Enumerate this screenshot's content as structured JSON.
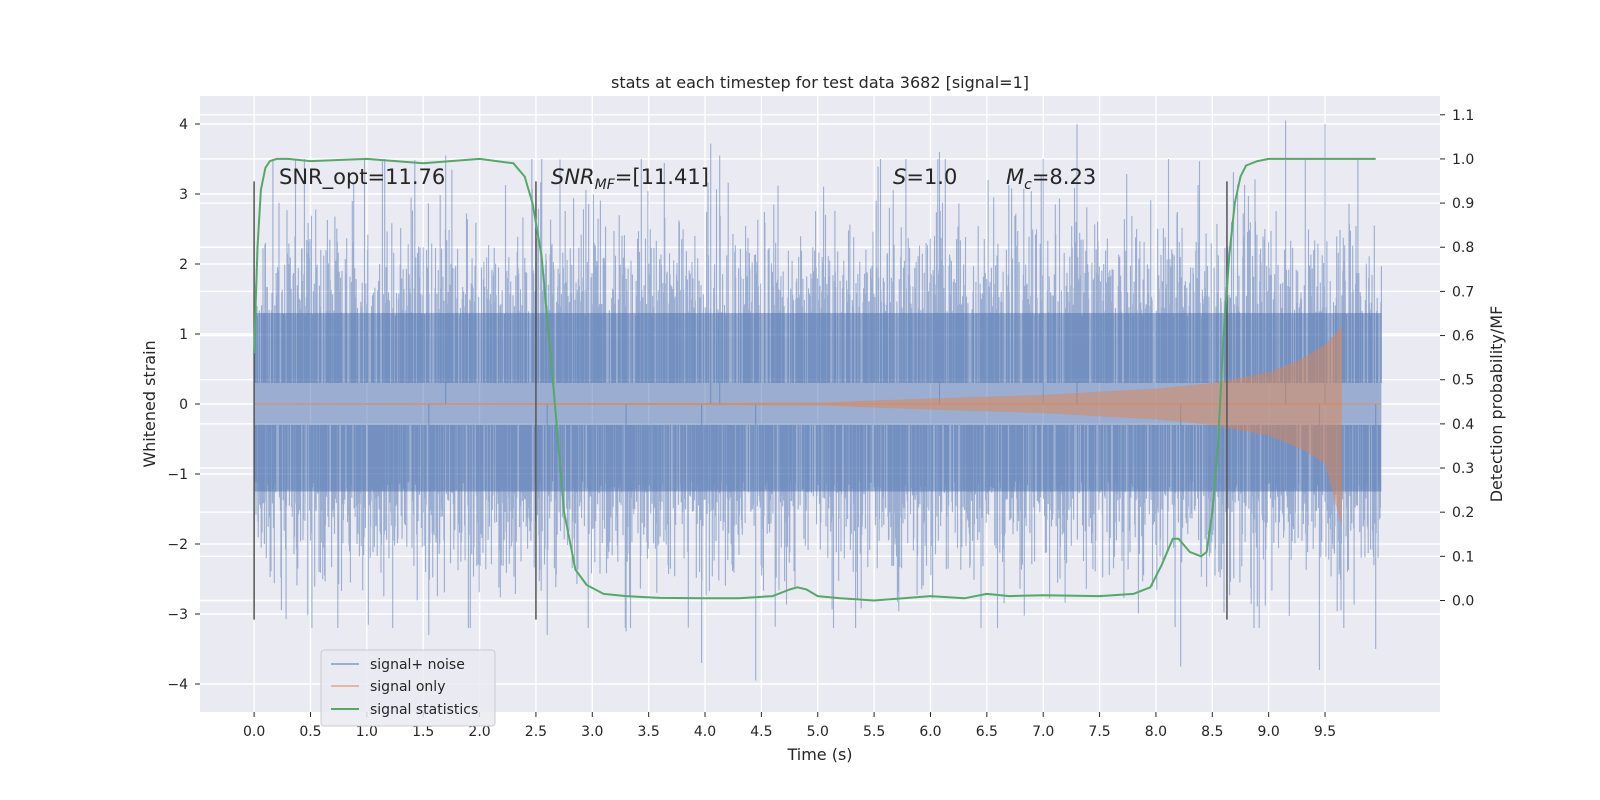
{
  "chart_data": {
    "type": "line",
    "title": "stats at each timestep for test data 3682 [signal=1]",
    "xlabel": "Time (s)",
    "ylabel": "Whitened strain",
    "ylabel_right": "Detection probability/MF",
    "xlim": [
      -0.48,
      10.52
    ],
    "ylim": [
      -4.4,
      4.4
    ],
    "ylim_right": [
      -0.2525,
      1.1425
    ],
    "xticks": [
      "0.0",
      "0.5",
      "1.0",
      "1.5",
      "2.0",
      "2.5",
      "3.0",
      "3.5",
      "4.0",
      "4.5",
      "5.0",
      "5.5",
      "6.0",
      "6.5",
      "7.0",
      "7.5",
      "8.0",
      "8.5",
      "9.0",
      "9.5"
    ],
    "yticks": [
      "4",
      "3",
      "2",
      "1",
      "0",
      "−1",
      "−2",
      "−3",
      "−4"
    ],
    "yticks_right": [
      "1.1",
      "1.0",
      "0.9",
      "0.8",
      "0.7",
      "0.6",
      "0.5",
      "0.4",
      "0.3",
      "0.2",
      "0.1",
      "0.0"
    ],
    "grid": true,
    "legend_placement": "lower-left",
    "annotations": {
      "snr_opt": "SNR_opt=11.76",
      "snr_mf_base": "SNR",
      "snr_mf_sub": "MF",
      "snr_mf_rest": "=[11.41]",
      "s_base": "S",
      "s_rest": "=1.0",
      "mc_base": "M",
      "mc_sub": "c",
      "mc_rest": "=8.23"
    },
    "vertical_markers": [
      0.0,
      2.5,
      8.63
    ],
    "series": [
      {
        "name": "signal+ noise",
        "color": "#4c72b0",
        "description": "dense noise, approx range -4 to 4",
        "t_range": [
          0.0,
          10.0
        ],
        "core_band": [
          -1.25,
          1.3
        ],
        "spikes": [
          [
            1.55,
            -3.3
          ],
          [
            1.7,
            3.55
          ],
          [
            4.05,
            3.72
          ],
          [
            4.13,
            3.55
          ],
          [
            4.45,
            -3.95
          ],
          [
            3.97,
            -3.7
          ],
          [
            7.3,
            4.0
          ],
          [
            8.22,
            -3.75
          ],
          [
            9.15,
            4.05
          ],
          [
            9.5,
            4.0
          ],
          [
            9.45,
            -3.8
          ],
          [
            6.08,
            3.6
          ],
          [
            2.6,
            -3.3
          ],
          [
            7.0,
            3.5
          ],
          [
            3.3,
            -3.25
          ],
          [
            9.95,
            -3.5
          ]
        ]
      },
      {
        "name": "signal only",
        "color": "#dd8452",
        "description": "chirp growing in amplitude until ~9.65 s",
        "points": [
          [
            0.0,
            0.0
          ],
          [
            5.0,
            0.02
          ],
          [
            6.0,
            0.08
          ],
          [
            7.0,
            0.13
          ],
          [
            8.0,
            0.22
          ],
          [
            8.5,
            0.3
          ],
          [
            9.0,
            0.45
          ],
          [
            9.3,
            0.65
          ],
          [
            9.5,
            0.85
          ],
          [
            9.65,
            1.1
          ]
        ]
      },
      {
        "name": "signal statistics",
        "color": "#55a868",
        "axis": "right",
        "x": [
          0.0,
          0.03,
          0.06,
          0.1,
          0.14,
          0.2,
          0.3,
          0.5,
          1.0,
          1.5,
          2.0,
          2.3,
          2.4,
          2.47,
          2.55,
          2.65,
          2.75,
          2.85,
          2.95,
          3.1,
          3.3,
          3.6,
          4.0,
          4.3,
          4.6,
          4.75,
          4.82,
          4.9,
          5.0,
          5.2,
          5.5,
          6.0,
          6.3,
          6.5,
          6.7,
          7.0,
          7.5,
          7.8,
          7.95,
          8.05,
          8.15,
          8.2,
          8.3,
          8.4,
          8.45,
          8.5,
          8.55,
          8.6,
          8.65,
          8.7,
          8.75,
          8.8,
          8.9,
          9.0,
          9.3,
          9.6,
          9.95
        ],
        "y": [
          0.56,
          0.8,
          0.93,
          0.98,
          0.995,
          1.0,
          1.0,
          0.995,
          1.0,
          0.99,
          1.0,
          0.99,
          0.96,
          0.9,
          0.78,
          0.5,
          0.2,
          0.07,
          0.035,
          0.015,
          0.01,
          0.006,
          0.005,
          0.005,
          0.01,
          0.025,
          0.03,
          0.025,
          0.01,
          0.005,
          0.0,
          0.01,
          0.005,
          0.015,
          0.01,
          0.012,
          0.01,
          0.015,
          0.03,
          0.08,
          0.14,
          0.14,
          0.11,
          0.1,
          0.11,
          0.2,
          0.35,
          0.6,
          0.78,
          0.9,
          0.96,
          0.985,
          0.995,
          1.0,
          1.0,
          1.0,
          1.0
        ]
      }
    ]
  }
}
